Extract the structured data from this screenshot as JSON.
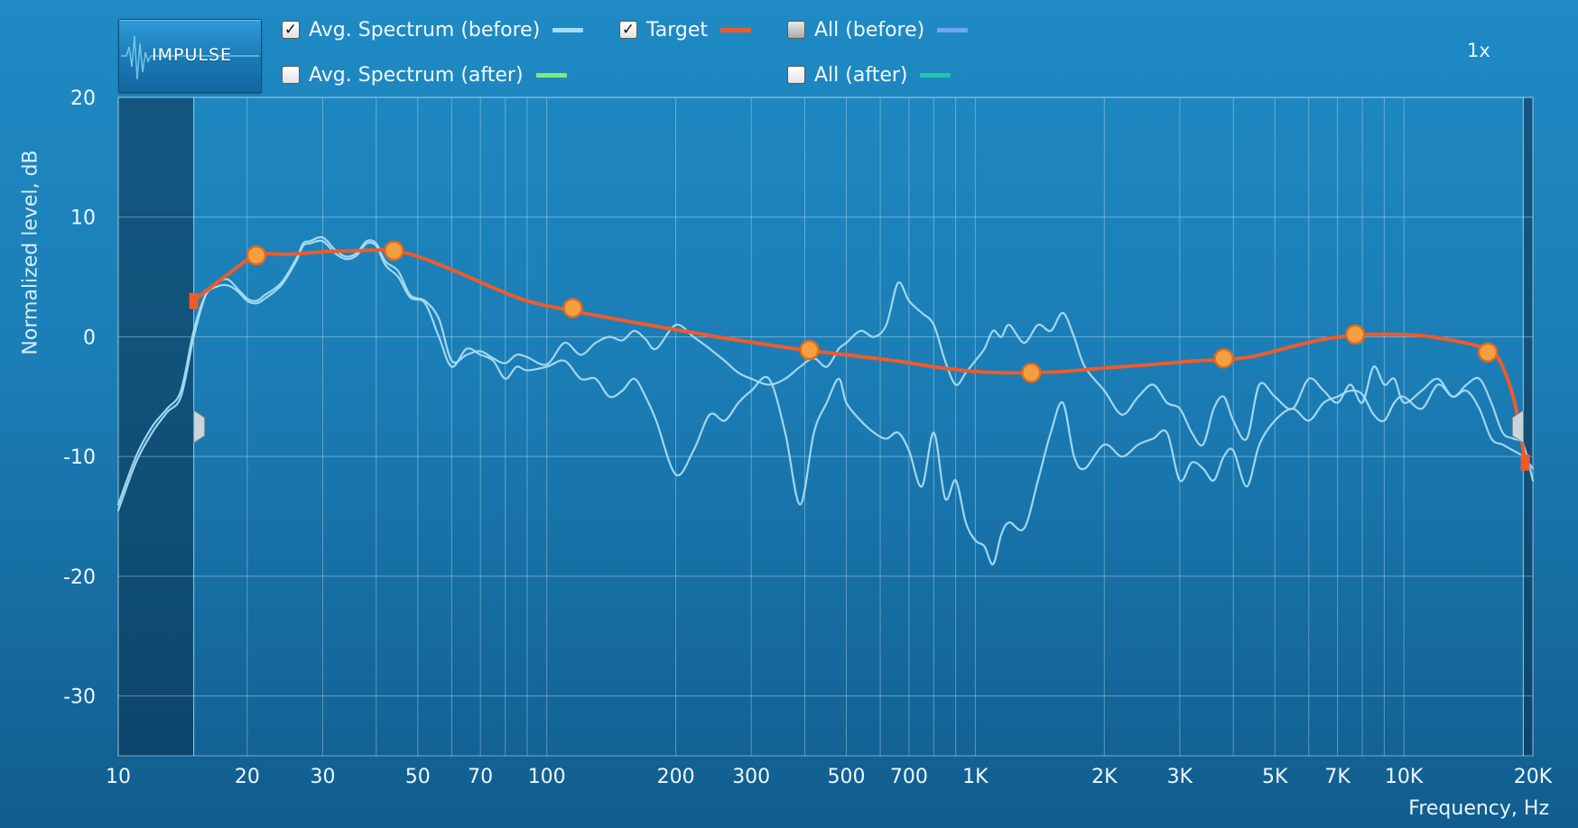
{
  "logo": {
    "text": "IMPULSE"
  },
  "legend": {
    "avg_before": {
      "label": "Avg. Spectrum (before)",
      "checked": true,
      "color": "#a6dcf5"
    },
    "target": {
      "label": "Target",
      "checked": true,
      "color": "#ee5b2b"
    },
    "all_before": {
      "label": "All (before)",
      "checked": false,
      "color": "#6fa6f0"
    },
    "avg_after": {
      "label": "Avg. Spectrum (after)",
      "checked": false,
      "color": "#7dec7a"
    },
    "all_after": {
      "label": "All (after)",
      "checked": false,
      "color": "#1fc7a4"
    }
  },
  "zoom": {
    "label": "1x"
  },
  "chart_data": {
    "type": "line",
    "xlabel": "Frequency, Hz",
    "ylabel": "Normalized level, dB",
    "x_scale": "log",
    "xlim": [
      10,
      20000
    ],
    "ylim": [
      -35,
      20
    ],
    "grid": true,
    "y_ticks": [
      20,
      10,
      0,
      -10,
      -20,
      -30
    ],
    "y_tick_labels": [
      "20",
      "10",
      "0",
      "-10",
      "-20",
      "-30"
    ],
    "x_ticks": [
      10,
      20,
      30,
      50,
      70,
      100,
      200,
      300,
      500,
      700,
      1000,
      2000,
      3000,
      5000,
      7000,
      10000,
      20000
    ],
    "x_tick_labels": [
      "10",
      "20",
      "30",
      "50",
      "70",
      "100",
      "200",
      "300",
      "500",
      "700",
      "1K",
      "2K",
      "3K",
      "5K",
      "7K",
      "10K",
      "20K"
    ],
    "minor_x_ticks": [
      40,
      60,
      80,
      90,
      400,
      600,
      800,
      900,
      4000,
      6000,
      8000,
      9000
    ],
    "excluded_ranges": [
      [
        10,
        15
      ],
      [
        19000,
        20000
      ]
    ],
    "series": [
      {
        "color": "#a6dcf5",
        "x": [
          10,
          11,
          12,
          13,
          14,
          15,
          16,
          17,
          18,
          19,
          20,
          21,
          22,
          24,
          26,
          27,
          28,
          30,
          32,
          34,
          36,
          38,
          40,
          42,
          45,
          48,
          52,
          56,
          60,
          65,
          70,
          75,
          80,
          85,
          90,
          100,
          110,
          120,
          130,
          140,
          150,
          160,
          170,
          180,
          200,
          220,
          240,
          260,
          280,
          300,
          330,
          360,
          390,
          420,
          450,
          480,
          500,
          540,
          580,
          620,
          660,
          700,
          750,
          800,
          850,
          900,
          950,
          1000,
          1050,
          1100,
          1150,
          1200,
          1300,
          1400,
          1500,
          1600,
          1700,
          1800,
          2000,
          2200,
          2400,
          2600,
          2800,
          3000,
          3200,
          3400,
          3600,
          3800,
          4000,
          4300,
          4600,
          5000,
          5500,
          6000,
          6500,
          7000,
          7500,
          8000,
          8500,
          9000,
          9500,
          10000,
          11000,
          12000,
          13000,
          14000,
          15000,
          16000,
          17000,
          18000,
          19000,
          20000
        ],
        "y": [
          -14.5,
          -10.5,
          -8,
          -6.3,
          -5,
          0,
          3.5,
          4.5,
          4.8,
          4,
          3.2,
          3,
          3.5,
          4.5,
          6.5,
          7.8,
          8,
          8.3,
          7.3,
          6.7,
          7,
          8,
          7.8,
          6.3,
          5.5,
          3.5,
          3,
          1.5,
          -2,
          -1.5,
          -1.2,
          -1.8,
          -2.2,
          -1.5,
          -1.7,
          -2.3,
          -0.5,
          -1.5,
          -0.5,
          0,
          -0.3,
          0.5,
          -0.2,
          -1,
          1,
          0,
          -1,
          -2,
          -3,
          -3.5,
          -4,
          -3.5,
          -2.5,
          -1.8,
          -2.5,
          -1,
          -0.5,
          0.5,
          0,
          1,
          4.5,
          3,
          2,
          1,
          -2,
          -4,
          -3,
          -2,
          -1,
          0.5,
          0,
          1,
          -0.5,
          1,
          0.5,
          2,
          0,
          -2.5,
          -4.5,
          -6.5,
          -5,
          -4,
          -5.5,
          -6,
          -8,
          -9,
          -6,
          -5,
          -7,
          -8.5,
          -4,
          -5,
          -6,
          -3.5,
          -4.5,
          -5.5,
          -4,
          -5.5,
          -2.5,
          -4,
          -3.5,
          -5.5,
          -4.5,
          -3.5,
          -5,
          -4,
          -3.5,
          -5.5,
          -8,
          -8.5,
          -9,
          -12
        ]
      },
      {
        "color": "#a6dcf5",
        "x": [
          10,
          11,
          12,
          13,
          14,
          15,
          16,
          17,
          18,
          19,
          20,
          21,
          22,
          24,
          26,
          27,
          28,
          30,
          32,
          34,
          36,
          38,
          40,
          42,
          45,
          48,
          52,
          56,
          60,
          65,
          70,
          75,
          80,
          85,
          90,
          100,
          110,
          120,
          130,
          140,
          150,
          160,
          170,
          180,
          200,
          220,
          240,
          260,
          280,
          300,
          330,
          360,
          390,
          420,
          450,
          480,
          500,
          540,
          580,
          620,
          660,
          700,
          750,
          800,
          850,
          900,
          950,
          1000,
          1050,
          1100,
          1150,
          1200,
          1300,
          1400,
          1500,
          1600,
          1700,
          1800,
          2000,
          2200,
          2400,
          2600,
          2800,
          3000,
          3200,
          3400,
          3600,
          3800,
          4000,
          4300,
          4600,
          5000,
          5500,
          6000,
          6500,
          7000,
          7500,
          8000,
          8500,
          9000,
          9500,
          10000,
          11000,
          12000,
          13000,
          14000,
          15000,
          16000,
          17000,
          18000,
          19000,
          20000
        ],
        "y": [
          -14,
          -10,
          -7.5,
          -6,
          -4.5,
          0.5,
          3.5,
          4.2,
          4.3,
          3.8,
          3,
          2.8,
          3.2,
          4.3,
          6.3,
          7.6,
          7.8,
          8,
          7,
          6.5,
          6.8,
          7.8,
          7.6,
          6,
          5,
          3.3,
          2.8,
          0,
          -2.5,
          -1,
          -1.5,
          -2,
          -3.5,
          -2.5,
          -2.8,
          -2.5,
          -2,
          -3.5,
          -3.5,
          -5,
          -4.5,
          -3.5,
          -5,
          -7,
          -11.5,
          -9.5,
          -6.5,
          -7,
          -5.5,
          -4.5,
          -3.5,
          -8,
          -14,
          -8,
          -5.5,
          -3.5,
          -5.5,
          -7,
          -8,
          -8.5,
          -8,
          -9.5,
          -12.5,
          -8,
          -13.5,
          -12,
          -15.5,
          -17,
          -17.5,
          -19,
          -16.5,
          -15.5,
          -16,
          -12,
          -8,
          -5.5,
          -10,
          -11,
          -9,
          -10,
          -9,
          -8.5,
          -8,
          -12,
          -10.5,
          -11,
          -12,
          -10,
          -9.5,
          -12.5,
          -9,
          -7,
          -6,
          -7,
          -5.5,
          -5,
          -4.5,
          -4.8,
          -6.5,
          -7,
          -5.5,
          -5,
          -6,
          -4,
          -5,
          -4.5,
          -6,
          -8.5,
          -9,
          -9.5,
          -10,
          -11
        ]
      },
      {
        "color": "#ee5b2b",
        "x": [
          15,
          16,
          18,
          21,
          25,
          30,
          36,
          44,
          52,
          62,
          75,
          90,
          110,
          130,
          160,
          200,
          250,
          320,
          400,
          500,
          650,
          800,
          1000,
          1200,
          1350,
          1600,
          2000,
          2600,
          3300,
          3900,
          4500,
          5500,
          6500,
          7500,
          8200,
          9500,
          11000,
          13000,
          15000,
          16200,
          17000,
          18000,
          18700,
          19200
        ],
        "y": [
          3,
          3.8,
          5.2,
          6.8,
          6.9,
          7.1,
          7.2,
          7.2,
          6.5,
          5.4,
          4.1,
          3,
          2.3,
          1.8,
          1.2,
          0.6,
          0,
          -0.6,
          -1.1,
          -1.5,
          -2,
          -2.5,
          -2.9,
          -3,
          -3,
          -2.9,
          -2.6,
          -2.3,
          -2,
          -1.9,
          -1.6,
          -0.8,
          -0.2,
          0.1,
          0.2,
          0.2,
          0.1,
          -0.3,
          -0.8,
          -1.3,
          -2.5,
          -5,
          -8,
          -10.5
        ]
      }
    ],
    "target_control_points": [
      {
        "x": 21,
        "y": 6.8
      },
      {
        "x": 44,
        "y": 7.2
      },
      {
        "x": 115,
        "y": 2.4
      },
      {
        "x": 410,
        "y": -1.1
      },
      {
        "x": 1350,
        "y": -3.0
      },
      {
        "x": 3800,
        "y": -1.8
      },
      {
        "x": 7700,
        "y": 0.2
      },
      {
        "x": 15700,
        "y": -1.3
      }
    ],
    "target_end_points": [
      {
        "x": 15,
        "y": 3
      },
      {
        "x": 19200,
        "y": -10.5
      }
    ]
  }
}
